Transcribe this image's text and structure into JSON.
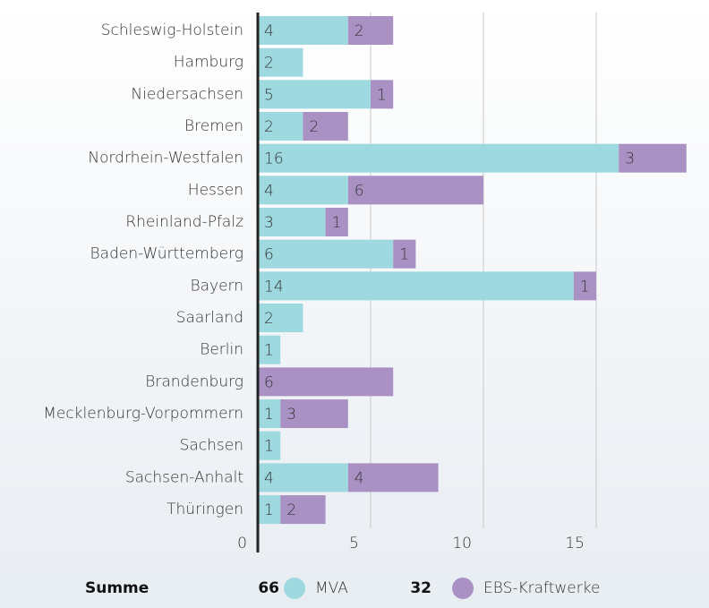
{
  "chart_data": {
    "type": "stacked-barh",
    "categories": [
      "Schleswig-Holstein",
      "Hamburg",
      "Niedersachsen",
      "Bremen",
      "Nordrhein-Westfalen",
      "Hessen",
      "Rheinland-Pfalz",
      "Baden-Württemberg",
      "Bayern",
      "Saarland",
      "Berlin",
      "Brandenburg",
      "Mecklenburg-Vorpommern",
      "Sachsen",
      "Sachsen-Anhalt",
      "Thüringen"
    ],
    "series": [
      {
        "name": "MVA",
        "color": "#9dd9df",
        "values": [
          4,
          2,
          5,
          2,
          16,
          4,
          3,
          6,
          14,
          2,
          1,
          null,
          1,
          1,
          4,
          1
        ]
      },
      {
        "name": "EBS-Kraftwerke",
        "color": "#a991c4",
        "values": [
          2,
          null,
          1,
          2,
          3,
          6,
          1,
          1,
          1,
          null,
          null,
          6,
          3,
          null,
          4,
          2
        ]
      }
    ],
    "xlim": [
      0,
      20
    ],
    "xticks": [
      0,
      5,
      10,
      15
    ],
    "grid": true,
    "totals_label": "Summe",
    "totals": [
      66,
      32
    ]
  }
}
